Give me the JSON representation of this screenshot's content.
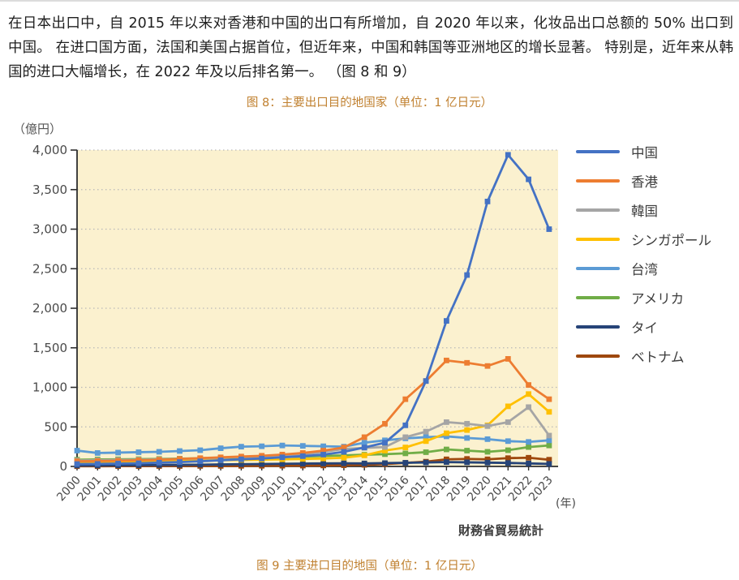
{
  "page": {
    "intro_text": "在日本出口中，自 2015 年以来对香港和中国的出口有所增加，自 2020 年以来，化妆品出口总额的 50% 出口到中国。 在进口国方面，法国和美国占据首位，但近年来，中国和韩国等亚洲地区的增长显著。 特别是，近年来从韩国的进口大幅增长，在 2022 年及以后排名第一。 （图 8 和 9）",
    "figure8_title": "图 8：主要出口目的地国家（单位：1 亿日元）",
    "figure9_caption": "图 9 主要进口目的地国（单位：1 亿日元）",
    "source": "財務省貿易統計"
  },
  "chart_data": {
    "type": "line",
    "title": "图 8：主要出口目的地国家（单位：1 亿日元）",
    "unit_label": "（億円）",
    "xaxis_suffix": "(年)",
    "x": [
      2000,
      2001,
      2002,
      2003,
      2004,
      2005,
      2006,
      2007,
      2008,
      2009,
      2010,
      2011,
      2012,
      2013,
      2014,
      2015,
      2016,
      2017,
      2018,
      2019,
      2020,
      2021,
      2022,
      2023
    ],
    "ylim": [
      0,
      4000
    ],
    "ytick_step": 500,
    "grid": "horizontal-dashed",
    "legend_position": "right",
    "plot_bg": "#FBF1CF",
    "grid_color": "#b9b9b9",
    "axis_color": "#2e2e2e",
    "series": [
      {
        "key": "china",
        "name": "中国",
        "color": "#4472C4",
        "values": [
          30,
          32,
          36,
          40,
          48,
          55,
          65,
          78,
          90,
          100,
          115,
          130,
          150,
          185,
          240,
          300,
          520,
          1080,
          1840,
          2420,
          3350,
          3940,
          3630,
          3000
        ]
      },
      {
        "key": "hongkong",
        "name": "香港",
        "color": "#ED7D31",
        "values": [
          65,
          68,
          72,
          78,
          85,
          95,
          105,
          115,
          125,
          135,
          150,
          170,
          200,
          240,
          370,
          540,
          850,
          1080,
          1340,
          1310,
          1270,
          1360,
          1030,
          850
        ]
      },
      {
        "key": "korea",
        "name": "韓国",
        "color": "#A5A5A5",
        "values": [
          75,
          78,
          82,
          85,
          90,
          95,
          100,
          110,
          120,
          125,
          135,
          150,
          185,
          220,
          235,
          245,
          370,
          440,
          560,
          540,
          510,
          560,
          750,
          390
        ]
      },
      {
        "key": "singapore",
        "name": "シンガポール",
        "color": "#FFC000",
        "values": [
          55,
          58,
          60,
          63,
          66,
          70,
          74,
          78,
          82,
          86,
          90,
          95,
          100,
          110,
          140,
          200,
          240,
          320,
          420,
          460,
          520,
          760,
          915,
          690
        ]
      },
      {
        "key": "taiwan",
        "name": "台湾",
        "color": "#5B9BD5",
        "values": [
          200,
          170,
          175,
          180,
          185,
          195,
          205,
          230,
          250,
          255,
          265,
          260,
          255,
          250,
          300,
          330,
          355,
          370,
          380,
          360,
          345,
          320,
          310,
          330
        ]
      },
      {
        "key": "usa",
        "name": "アメリカ",
        "color": "#70AD47",
        "values": [
          85,
          88,
          90,
          92,
          95,
          98,
          102,
          108,
          112,
          115,
          120,
          125,
          132,
          140,
          148,
          155,
          165,
          180,
          215,
          200,
          185,
          205,
          245,
          265
        ]
      },
      {
        "key": "thailand",
        "name": "タイ",
        "color": "#264478",
        "values": [
          12,
          12,
          14,
          16,
          18,
          20,
          22,
          25,
          28,
          30,
          33,
          36,
          38,
          40,
          38,
          42,
          46,
          50,
          55,
          52,
          48,
          44,
          38,
          32
        ]
      },
      {
        "key": "vietnam",
        "name": "ベトナム",
        "color": "#9E480E",
        "values": [
          3,
          3,
          4,
          4,
          5,
          5,
          6,
          6,
          7,
          8,
          9,
          10,
          12,
          15,
          20,
          30,
          45,
          60,
          90,
          95,
          90,
          105,
          110,
          85
        ]
      }
    ]
  }
}
